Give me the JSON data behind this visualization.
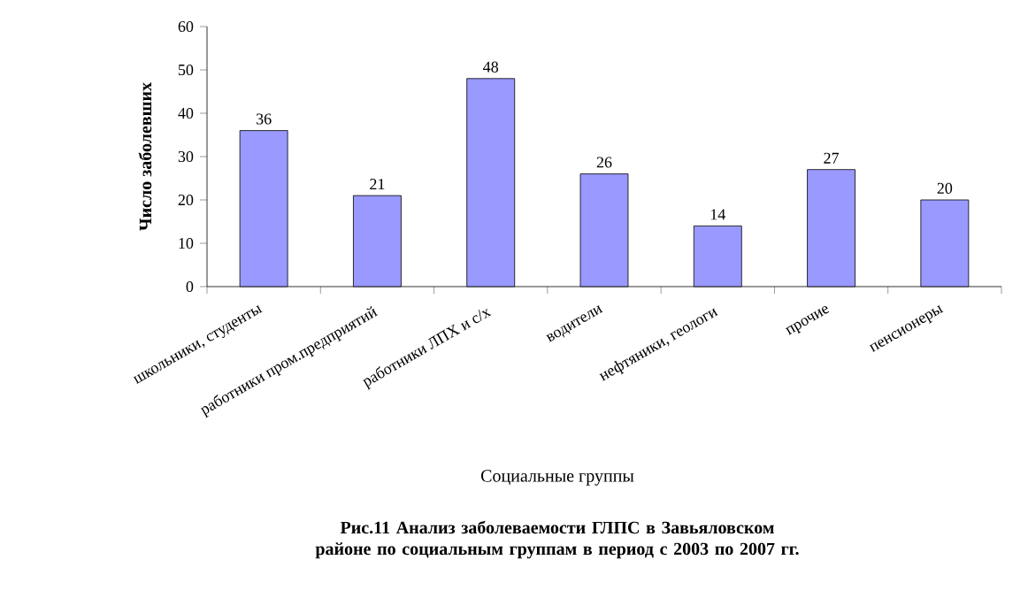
{
  "chart_data": {
    "type": "bar",
    "title": "Рис.11 Анализ заболеваемости ГЛПС в Завьяловском районе по социальным группам в период с 2003 по 2007 гг.",
    "xlabel": "Социальные группы",
    "ylabel": "Число заболевших",
    "categories": [
      "школьники, студенты",
      "работники пром.предприятий",
      "работники ЛПХ и с/х",
      "водители",
      "нефтяники, геологи",
      "прочие",
      "пенсионеры"
    ],
    "values": [
      36,
      21,
      48,
      26,
      14,
      27,
      20
    ],
    "color": "#9999ff",
    "ylim": [
      0,
      60
    ],
    "yticks": [
      0,
      10,
      20,
      30,
      40,
      50,
      60
    ],
    "grid": false,
    "data_labels": true
  }
}
